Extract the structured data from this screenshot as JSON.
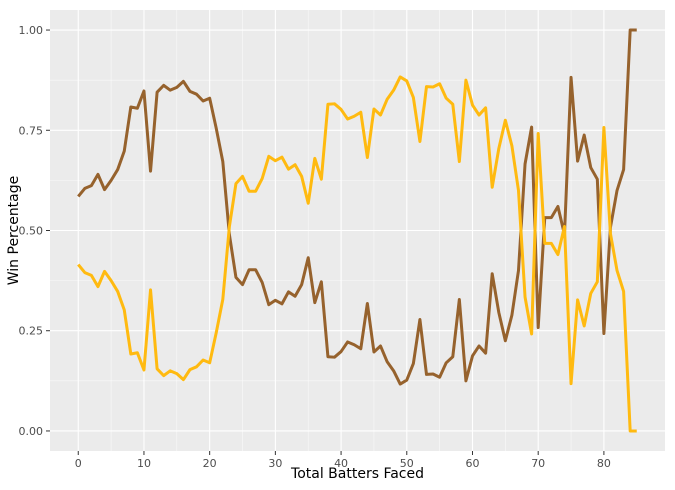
{
  "chart_data": {
    "type": "line",
    "title": "",
    "xlabel": "Total Batters Faced",
    "ylabel": "Win Percentage",
    "xlim": [
      -4.3,
      89.3
    ],
    "ylim": [
      -0.05,
      1.05
    ],
    "x_ticks": [
      0,
      10,
      20,
      30,
      40,
      50,
      60,
      70,
      80
    ],
    "x_tick_labels": [
      "0",
      "10",
      "20",
      "30",
      "40",
      "50",
      "60",
      "70",
      "80"
    ],
    "y_ticks": [
      0,
      0.25,
      0.5,
      0.75,
      1
    ],
    "y_tick_labels": [
      "0.00",
      "0.25",
      "0.50",
      "0.75",
      "1.00"
    ],
    "grid": true,
    "legend": "none",
    "series": [
      {
        "color": "#96622D",
        "x": [
          0,
          1,
          2,
          3,
          4,
          5,
          6,
          7,
          8,
          9,
          10,
          11,
          12,
          13,
          14,
          15,
          16,
          17,
          18,
          19,
          20,
          21,
          22,
          23,
          24,
          25,
          26,
          27,
          28,
          29,
          30,
          31,
          32,
          33,
          34,
          35,
          36,
          37,
          38,
          39,
          40,
          41,
          42,
          43,
          44,
          45,
          46,
          47,
          48,
          49,
          50,
          51,
          52,
          53,
          54,
          55,
          56,
          57,
          58,
          59,
          60,
          61,
          62,
          63,
          64,
          65,
          66,
          67,
          68,
          69,
          70,
          71,
          72,
          73,
          74,
          75,
          76,
          77,
          78,
          79,
          80,
          81,
          82,
          83,
          84,
          85
        ],
        "values": [
          0.585,
          0.605,
          0.612,
          0.64,
          0.602,
          0.625,
          0.652,
          0.698,
          0.808,
          0.805,
          0.848,
          0.648,
          0.845,
          0.862,
          0.85,
          0.857,
          0.872,
          0.847,
          0.84,
          0.823,
          0.83,
          0.755,
          0.672,
          0.49,
          0.383,
          0.365,
          0.402,
          0.402,
          0.37,
          0.315,
          0.326,
          0.317,
          0.347,
          0.336,
          0.365,
          0.432,
          0.32,
          0.372,
          0.185,
          0.184,
          0.198,
          0.222,
          0.215,
          0.205,
          0.318,
          0.197,
          0.212,
          0.173,
          0.15,
          0.117,
          0.127,
          0.168,
          0.278,
          0.141,
          0.142,
          0.134,
          0.17,
          0.185,
          0.328,
          0.125,
          0.187,
          0.212,
          0.194,
          0.392,
          0.296,
          0.225,
          0.289,
          0.4,
          0.666,
          0.758,
          0.258,
          0.532,
          0.532,
          0.56,
          0.49,
          0.882,
          0.673,
          0.738,
          0.657,
          0.628,
          0.243,
          0.508,
          0.6,
          0.652,
          1.0,
          1.0
        ]
      },
      {
        "color": "#FFBA10",
        "x": [
          0,
          1,
          2,
          3,
          4,
          5,
          6,
          7,
          8,
          9,
          10,
          11,
          12,
          13,
          14,
          15,
          16,
          17,
          18,
          19,
          20,
          21,
          22,
          23,
          24,
          25,
          26,
          27,
          28,
          29,
          30,
          31,
          32,
          33,
          34,
          35,
          36,
          37,
          38,
          39,
          40,
          41,
          42,
          43,
          44,
          45,
          46,
          47,
          48,
          49,
          50,
          51,
          52,
          53,
          54,
          55,
          56,
          57,
          58,
          59,
          60,
          61,
          62,
          63,
          64,
          65,
          66,
          67,
          68,
          69,
          70,
          71,
          72,
          73,
          74,
          75,
          76,
          77,
          78,
          79,
          80,
          81,
          82,
          83,
          84,
          85
        ],
        "values": [
          0.415,
          0.395,
          0.388,
          0.36,
          0.398,
          0.375,
          0.348,
          0.302,
          0.192,
          0.195,
          0.152,
          0.352,
          0.155,
          0.138,
          0.15,
          0.143,
          0.128,
          0.153,
          0.16,
          0.177,
          0.17,
          0.245,
          0.328,
          0.51,
          0.617,
          0.635,
          0.598,
          0.598,
          0.63,
          0.685,
          0.674,
          0.683,
          0.653,
          0.664,
          0.635,
          0.568,
          0.68,
          0.628,
          0.815,
          0.816,
          0.802,
          0.778,
          0.785,
          0.795,
          0.682,
          0.803,
          0.788,
          0.827,
          0.85,
          0.883,
          0.873,
          0.832,
          0.722,
          0.859,
          0.858,
          0.866,
          0.83,
          0.815,
          0.672,
          0.875,
          0.813,
          0.788,
          0.806,
          0.608,
          0.704,
          0.775,
          0.711,
          0.6,
          0.334,
          0.242,
          0.742,
          0.468,
          0.468,
          0.44,
          0.51,
          0.118,
          0.327,
          0.262,
          0.343,
          0.372,
          0.757,
          0.492,
          0.4,
          0.348,
          0.0,
          0.0
        ]
      }
    ]
  }
}
